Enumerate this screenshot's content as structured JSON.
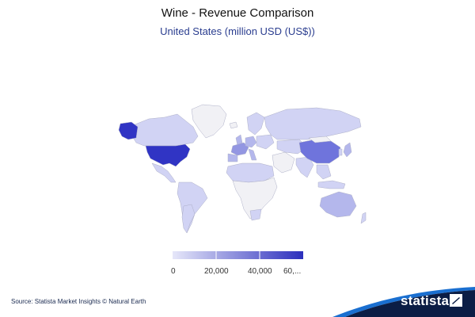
{
  "header": {
    "title": "Wine - Revenue Comparison",
    "subtitle": "United States (million USD (US$))"
  },
  "legend": {
    "labels": [
      "0",
      "20,000",
      "40,000",
      "60,..."
    ],
    "min_color": "#e6e7f9",
    "max_color": "#2c2fbd"
  },
  "colors": {
    "usa": "#3034c4",
    "alaska": "#3034c4",
    "china": "#6f74dc",
    "high": "#9396e2",
    "mid": "#b4b7ec",
    "low": "#d1d3f4",
    "none": "#f1f1f5",
    "border": "#aeb0c8"
  },
  "footer": {
    "source": "Source: Statista Market Insights © Natural Earth",
    "brand": "statista",
    "brand_color": "#0b1d45",
    "accent_color": "#1a6fd0"
  }
}
